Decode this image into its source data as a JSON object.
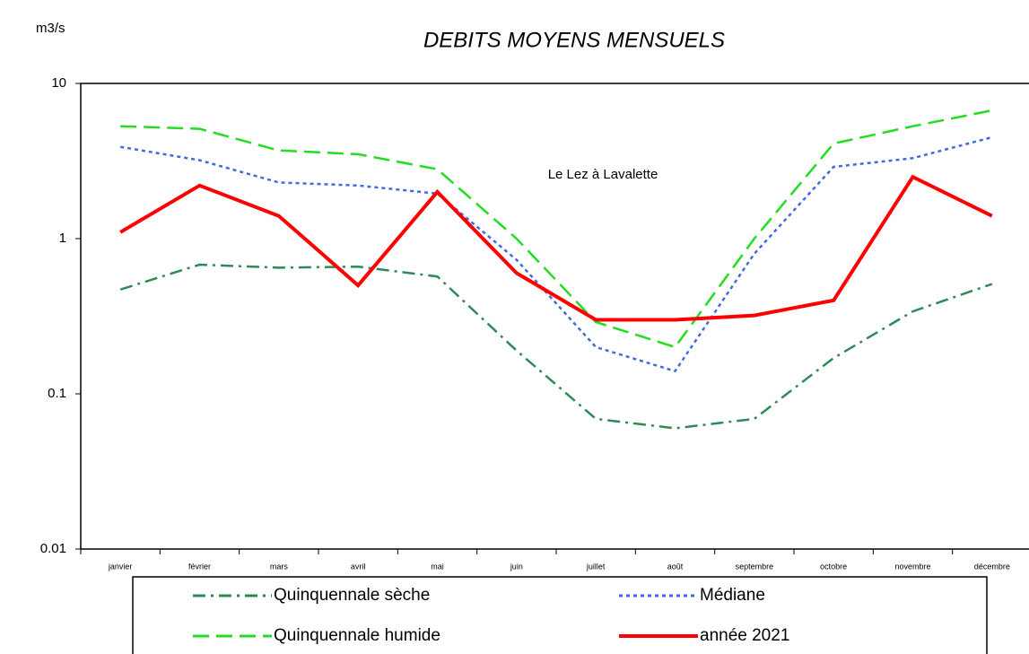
{
  "chart_data": {
    "type": "line",
    "title": "DEBITS MOYENS MENSUELS",
    "y_label": "m3/s",
    "annotation": "Le Lez à Lavalette",
    "categories": [
      "janvier",
      "février",
      "mars",
      "avril",
      "mai",
      "juin",
      "juillet",
      "août",
      "septembre",
      "octobre",
      "novembre",
      "décembre"
    ],
    "log_y": true,
    "ylim": [
      0.01,
      10
    ],
    "yticks": [
      0.01,
      0.1,
      1,
      10
    ],
    "series": [
      {
        "name": "Quinquennale sèche",
        "color": "#2e8b57",
        "dash": "dashdot",
        "values": [
          0.47,
          0.68,
          0.65,
          0.66,
          0.57,
          0.19,
          0.069,
          0.06,
          0.069,
          0.17,
          0.34,
          0.51
        ]
      },
      {
        "name": "Médiane",
        "color": "#4169e1",
        "dash": "dotted",
        "values": [
          3.9,
          3.2,
          2.3,
          2.2,
          1.95,
          0.73,
          0.2,
          0.14,
          0.8,
          2.9,
          3.3,
          4.5
        ]
      },
      {
        "name": "Quinquennale humide",
        "color": "#22dd22",
        "dash": "dashed",
        "values": [
          5.3,
          5.1,
          3.7,
          3.5,
          2.8,
          1.0,
          0.29,
          0.2,
          1.0,
          4.1,
          5.3,
          6.7
        ]
      },
      {
        "name": "année 2021",
        "color": "#ff0000",
        "dash": "solid",
        "values": [
          1.1,
          2.2,
          1.4,
          0.5,
          2.0,
          0.6,
          0.3,
          0.3,
          0.32,
          0.4,
          2.5,
          1.4
        ]
      }
    ]
  }
}
